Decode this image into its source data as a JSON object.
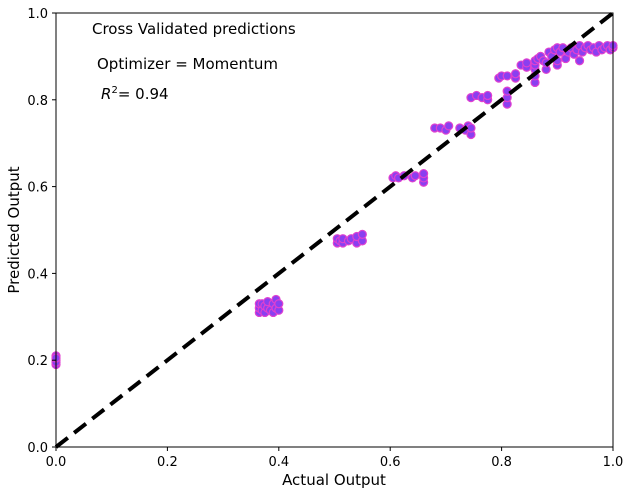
{
  "chart_data": {
    "type": "scatter",
    "xlabel": "Actual Output",
    "ylabel": "Predicted Output",
    "xlim": [
      0.0,
      1.0
    ],
    "ylim": [
      0.0,
      1.0
    ],
    "x_ticks": [
      "0.0",
      "0.2",
      "0.4",
      "0.6",
      "0.8",
      "1.0"
    ],
    "y_ticks": [
      "0.0",
      "0.2",
      "0.4",
      "0.6",
      "0.8",
      "1.0"
    ],
    "grid": false,
    "annotations": {
      "line1": "Cross Validated predictions",
      "line2": "Optimizer = Momentum",
      "r2_value": "= 0.94"
    },
    "reference_line": {
      "type": "identity",
      "style": "dashed",
      "color": "#000000"
    },
    "marker_fill": "#8a3ff0",
    "marker_edge": "#e040d0",
    "points": [
      [
        0.0,
        0.19
      ],
      [
        0.0,
        0.2
      ],
      [
        0.0,
        0.21
      ],
      [
        0.0,
        0.195
      ],
      [
        0.0,
        0.205
      ],
      [
        0.365,
        0.31
      ],
      [
        0.365,
        0.32
      ],
      [
        0.365,
        0.33
      ],
      [
        0.37,
        0.315
      ],
      [
        0.37,
        0.33
      ],
      [
        0.375,
        0.31
      ],
      [
        0.375,
        0.325
      ],
      [
        0.38,
        0.32
      ],
      [
        0.38,
        0.335
      ],
      [
        0.385,
        0.315
      ],
      [
        0.39,
        0.31
      ],
      [
        0.39,
        0.33
      ],
      [
        0.395,
        0.32
      ],
      [
        0.395,
        0.34
      ],
      [
        0.4,
        0.315
      ],
      [
        0.4,
        0.33
      ],
      [
        0.505,
        0.47
      ],
      [
        0.505,
        0.48
      ],
      [
        0.51,
        0.475
      ],
      [
        0.515,
        0.47
      ],
      [
        0.515,
        0.48
      ],
      [
        0.525,
        0.475
      ],
      [
        0.53,
        0.48
      ],
      [
        0.54,
        0.47
      ],
      [
        0.54,
        0.485
      ],
      [
        0.55,
        0.475
      ],
      [
        0.55,
        0.49
      ],
      [
        0.605,
        0.62
      ],
      [
        0.61,
        0.625
      ],
      [
        0.615,
        0.62
      ],
      [
        0.625,
        0.625
      ],
      [
        0.64,
        0.62
      ],
      [
        0.645,
        0.625
      ],
      [
        0.66,
        0.61
      ],
      [
        0.66,
        0.62
      ],
      [
        0.66,
        0.63
      ],
      [
        0.68,
        0.735
      ],
      [
        0.69,
        0.735
      ],
      [
        0.7,
        0.73
      ],
      [
        0.705,
        0.74
      ],
      [
        0.725,
        0.735
      ],
      [
        0.735,
        0.73
      ],
      [
        0.74,
        0.74
      ],
      [
        0.745,
        0.72
      ],
      [
        0.745,
        0.735
      ],
      [
        0.745,
        0.805
      ],
      [
        0.755,
        0.81
      ],
      [
        0.765,
        0.805
      ],
      [
        0.775,
        0.8
      ],
      [
        0.775,
        0.81
      ],
      [
        0.795,
        0.85
      ],
      [
        0.8,
        0.855
      ],
      [
        0.81,
        0.79
      ],
      [
        0.81,
        0.805
      ],
      [
        0.81,
        0.82
      ],
      [
        0.81,
        0.855
      ],
      [
        0.825,
        0.85
      ],
      [
        0.825,
        0.86
      ],
      [
        0.835,
        0.88
      ],
      [
        0.845,
        0.875
      ],
      [
        0.845,
        0.885
      ],
      [
        0.86,
        0.84
      ],
      [
        0.86,
        0.855
      ],
      [
        0.86,
        0.87
      ],
      [
        0.86,
        0.88
      ],
      [
        0.86,
        0.89
      ],
      [
        0.865,
        0.895
      ],
      [
        0.87,
        0.9
      ],
      [
        0.875,
        0.89
      ],
      [
        0.88,
        0.87
      ],
      [
        0.88,
        0.885
      ],
      [
        0.885,
        0.91
      ],
      [
        0.89,
        0.9
      ],
      [
        0.895,
        0.915
      ],
      [
        0.9,
        0.88
      ],
      [
        0.9,
        0.89
      ],
      [
        0.9,
        0.92
      ],
      [
        0.905,
        0.91
      ],
      [
        0.91,
        0.92
      ],
      [
        0.915,
        0.895
      ],
      [
        0.92,
        0.91
      ],
      [
        0.925,
        0.92
      ],
      [
        0.93,
        0.905
      ],
      [
        0.935,
        0.915
      ],
      [
        0.94,
        0.925
      ],
      [
        0.94,
        0.89
      ],
      [
        0.945,
        0.91
      ],
      [
        0.95,
        0.92
      ],
      [
        0.955,
        0.925
      ],
      [
        0.96,
        0.915
      ],
      [
        0.965,
        0.92
      ],
      [
        0.97,
        0.91
      ],
      [
        0.975,
        0.925
      ],
      [
        0.98,
        0.915
      ],
      [
        0.985,
        0.92
      ],
      [
        0.99,
        0.925
      ],
      [
        0.995,
        0.915
      ],
      [
        1.0,
        0.92
      ],
      [
        1.0,
        0.925
      ]
    ]
  }
}
